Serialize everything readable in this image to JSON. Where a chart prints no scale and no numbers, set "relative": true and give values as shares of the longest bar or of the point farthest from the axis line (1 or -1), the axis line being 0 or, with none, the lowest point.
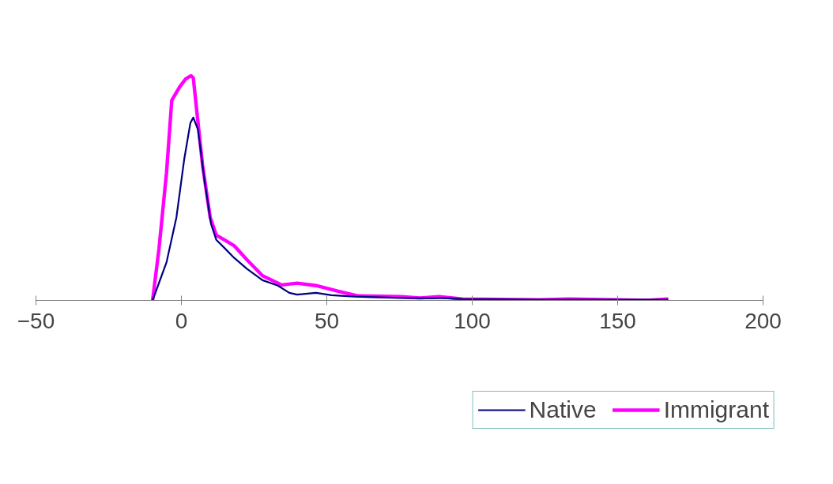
{
  "chart_data": {
    "type": "line",
    "relative": true,
    "xlim": [
      -50,
      200
    ],
    "xticks": [
      -50,
      0,
      50,
      100,
      150,
      200
    ],
    "legend": "bottom",
    "grid": false,
    "marker": "none",
    "line_style": "solid",
    "series": [
      {
        "name": "Native",
        "color": "#000080",
        "x": [
          -9.9,
          -5.1,
          -1.7,
          1,
          3.1,
          4.1,
          5.7,
          8.1,
          10.2,
          12,
          14.7,
          18.1,
          22.6,
          27.9,
          33.2,
          37.1,
          39.8,
          46.3,
          51.6,
          59.5,
          75.4,
          86,
          90,
          96.6,
          123,
          149.5,
          167.4
        ],
        "values": [
          0,
          0.17,
          0.37,
          0.63,
          0.79,
          0.814,
          0.76,
          0.52,
          0.34,
          0.27,
          0.235,
          0.19,
          0.14,
          0.09,
          0.066,
          0.034,
          0.026,
          0.034,
          0.023,
          0.017,
          0.011,
          0.009,
          0.011,
          0.006,
          0.003,
          0.003,
          0.003
        ]
      },
      {
        "name": "Immigrant",
        "color": "#ff00ff",
        "x": [
          -9.9,
          -7.7,
          -5.1,
          -3.3,
          -0.6,
          1.5,
          3.3,
          4.1,
          5.4,
          7.3,
          9.9,
          12,
          14.7,
          18.1,
          22.6,
          27.9,
          34.5,
          39.8,
          46.3,
          54.2,
          60.8,
          75.4,
          82,
          88.6,
          96.6,
          123,
          133.5,
          149.5,
          160,
          167.4
        ],
        "values": [
          0,
          0.23,
          0.57,
          0.89,
          0.95,
          0.986,
          1,
          0.99,
          0.83,
          0.6,
          0.37,
          0.29,
          0.27,
          0.244,
          0.18,
          0.11,
          0.069,
          0.077,
          0.066,
          0.04,
          0.02,
          0.017,
          0.011,
          0.017,
          0.006,
          0.003,
          0.006,
          0.003,
          0,
          0.006
        ]
      }
    ]
  }
}
